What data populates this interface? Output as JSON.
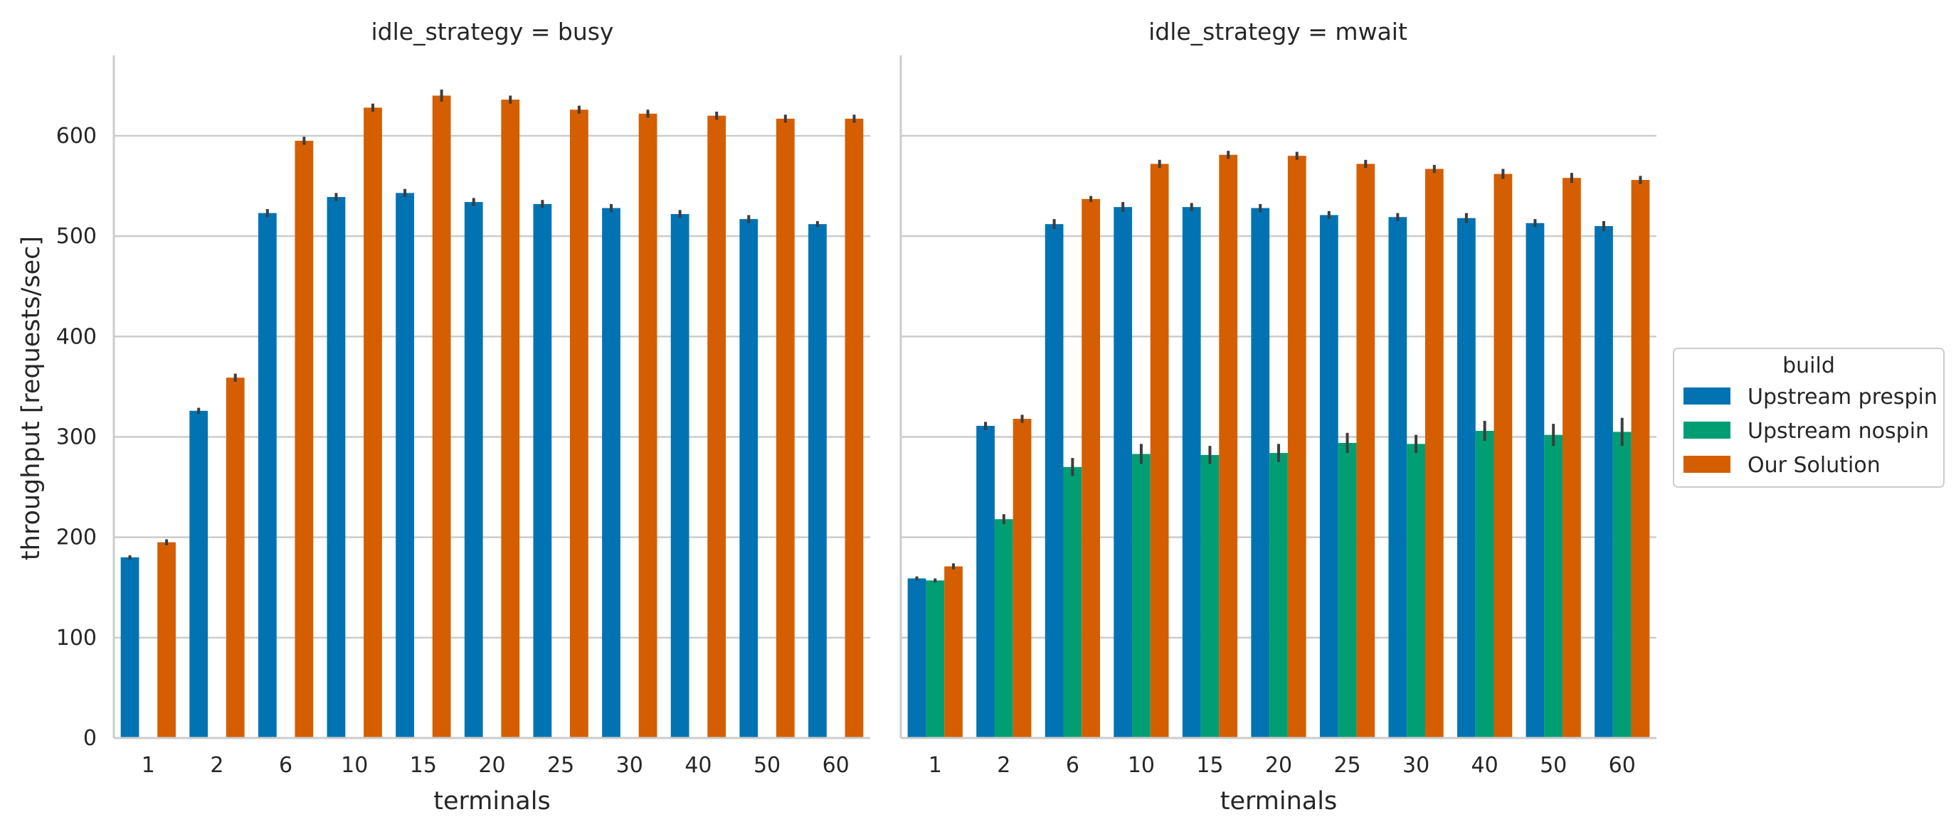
{
  "chart_data": {
    "type": "bar",
    "categories": [
      "1",
      "2",
      "6",
      "10",
      "15",
      "20",
      "25",
      "30",
      "40",
      "50",
      "60"
    ],
    "xlabel": "terminals",
    "ylabel": "throughput [requests/sec]",
    "ylim": [
      0,
      680
    ],
    "yticks": [
      0,
      100,
      200,
      300,
      400,
      500,
      600
    ],
    "grid": "y",
    "legend": {
      "title": "build",
      "placement": "right",
      "entries": [
        "Upstream prespin",
        "Upstream nospin",
        "Our Solution"
      ]
    },
    "colors": {
      "Upstream prespin": "#0173b2",
      "Upstream nospin": "#029e73",
      "Our Solution": "#d55e00"
    },
    "panels": [
      {
        "title": "idle_strategy = busy",
        "series": [
          {
            "name": "Upstream prespin",
            "values": [
              180,
              326,
              523,
              539,
              543,
              534,
              532,
              528,
              522,
              517,
              512
            ],
            "err": [
              2,
              3,
              4,
              4,
              4,
              4,
              4,
              4,
              4,
              4,
              3
            ]
          },
          {
            "name": "Upstream nospin",
            "values": [
              null,
              null,
              null,
              null,
              null,
              null,
              null,
              null,
              null,
              null,
              null
            ],
            "err": [
              0,
              0,
              0,
              0,
              0,
              0,
              0,
              0,
              0,
              0,
              0
            ]
          },
          {
            "name": "Our Solution",
            "values": [
              195,
              359,
              595,
              628,
              640,
              636,
              626,
              622,
              620,
              617,
              617
            ],
            "err": [
              3,
              4,
              4,
              4,
              6,
              4,
              4,
              4,
              4,
              4,
              4
            ]
          }
        ]
      },
      {
        "title": "idle_strategy = mwait",
        "series": [
          {
            "name": "Upstream prespin",
            "values": [
              159,
              311,
              512,
              529,
              529,
              528,
              521,
              519,
              518,
              513,
              510
            ],
            "err": [
              2,
              4,
              5,
              5,
              4,
              4,
              4,
              4,
              5,
              4,
              5
            ]
          },
          {
            "name": "Upstream nospin",
            "values": [
              157,
              218,
              270,
              283,
              282,
              284,
              294,
              293,
              306,
              302,
              305
            ],
            "err": [
              2,
              5,
              9,
              10,
              9,
              9,
              10,
              9,
              10,
              11,
              14
            ]
          },
          {
            "name": "Our Solution",
            "values": [
              171,
              318,
              537,
              572,
              581,
              580,
              572,
              567,
              562,
              558,
              556
            ],
            "err": [
              3,
              4,
              3,
              4,
              4,
              4,
              4,
              4,
              5,
              5,
              4
            ]
          }
        ]
      }
    ]
  }
}
